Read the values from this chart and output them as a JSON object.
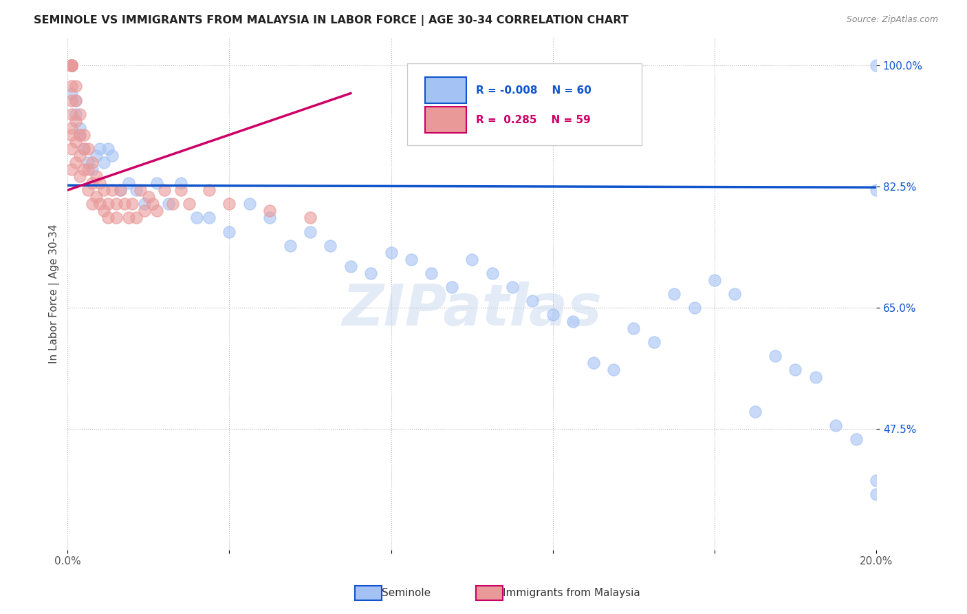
{
  "title": "SEMINOLE VS IMMIGRANTS FROM MALAYSIA IN LABOR FORCE | AGE 30-34 CORRELATION CHART",
  "source": "Source: ZipAtlas.com",
  "ylabel": "In Labor Force | Age 30-34",
  "x_min": 0.0,
  "x_max": 0.2,
  "y_min": 0.3,
  "y_max": 1.04,
  "x_ticks": [
    0.0,
    0.04,
    0.08,
    0.12,
    0.16,
    0.2
  ],
  "x_tick_labels": [
    "0.0%",
    "",
    "",
    "",
    "",
    "20.0%"
  ],
  "y_ticks": [
    0.475,
    0.65,
    0.825,
    1.0
  ],
  "y_tick_labels": [
    "47.5%",
    "65.0%",
    "82.5%",
    "100.0%"
  ],
  "blue_color": "#a4c2f4",
  "pink_color": "#ea9999",
  "blue_line_color": "#1155cc",
  "pink_line_color": "#cc0066",
  "watermark": "ZIPatlas",
  "legend_R_blue": "-0.008",
  "legend_N_blue": "60",
  "legend_R_pink": "0.285",
  "legend_N_pink": "59",
  "legend_label_blue": "Seminole",
  "legend_label_pink": "Immigrants from Malaysia",
  "blue_trend_x": [
    0.0,
    0.2
  ],
  "blue_trend_y": [
    0.827,
    0.824
  ],
  "pink_trend_x": [
    0.0,
    0.07
  ],
  "pink_trend_y": [
    0.82,
    0.96
  ],
  "blue_x": [
    0.001,
    0.001,
    0.001,
    0.002,
    0.002,
    0.003,
    0.003,
    0.004,
    0.005,
    0.006,
    0.007,
    0.008,
    0.009,
    0.01,
    0.011,
    0.013,
    0.015,
    0.017,
    0.019,
    0.022,
    0.025,
    0.028,
    0.032,
    0.035,
    0.04,
    0.045,
    0.05,
    0.055,
    0.06,
    0.065,
    0.07,
    0.075,
    0.08,
    0.085,
    0.09,
    0.095,
    0.1,
    0.105,
    0.11,
    0.115,
    0.12,
    0.125,
    0.13,
    0.135,
    0.14,
    0.145,
    0.15,
    0.155,
    0.16,
    0.165,
    0.17,
    0.175,
    0.18,
    0.185,
    0.19,
    0.195,
    0.2,
    0.2,
    0.2,
    0.2
  ],
  "blue_y": [
    1.0,
    1.0,
    0.96,
    0.95,
    0.93,
    0.91,
    0.9,
    0.88,
    0.86,
    0.85,
    0.87,
    0.88,
    0.86,
    0.88,
    0.87,
    0.82,
    0.83,
    0.82,
    0.8,
    0.83,
    0.8,
    0.83,
    0.78,
    0.78,
    0.76,
    0.8,
    0.78,
    0.74,
    0.76,
    0.74,
    0.71,
    0.7,
    0.73,
    0.72,
    0.7,
    0.68,
    0.72,
    0.7,
    0.68,
    0.66,
    0.64,
    0.63,
    0.57,
    0.56,
    0.62,
    0.6,
    0.67,
    0.65,
    0.69,
    0.67,
    0.5,
    0.58,
    0.56,
    0.55,
    0.48,
    0.46,
    0.4,
    0.38,
    1.0,
    0.82
  ],
  "pink_x": [
    0.001,
    0.001,
    0.001,
    0.001,
    0.001,
    0.001,
    0.001,
    0.001,
    0.001,
    0.001,
    0.001,
    0.001,
    0.002,
    0.002,
    0.002,
    0.002,
    0.002,
    0.003,
    0.003,
    0.003,
    0.003,
    0.004,
    0.004,
    0.004,
    0.005,
    0.005,
    0.005,
    0.006,
    0.006,
    0.006,
    0.007,
    0.007,
    0.008,
    0.008,
    0.009,
    0.009,
    0.01,
    0.01,
    0.011,
    0.012,
    0.012,
    0.013,
    0.014,
    0.015,
    0.016,
    0.017,
    0.018,
    0.019,
    0.02,
    0.021,
    0.022,
    0.024,
    0.026,
    0.028,
    0.03,
    0.035,
    0.04,
    0.05,
    0.06
  ],
  "pink_y": [
    1.0,
    1.0,
    1.0,
    1.0,
    1.0,
    0.97,
    0.95,
    0.93,
    0.91,
    0.9,
    0.88,
    0.85,
    0.97,
    0.95,
    0.92,
    0.89,
    0.86,
    0.93,
    0.9,
    0.87,
    0.84,
    0.9,
    0.88,
    0.85,
    0.88,
    0.85,
    0.82,
    0.86,
    0.83,
    0.8,
    0.84,
    0.81,
    0.83,
    0.8,
    0.82,
    0.79,
    0.8,
    0.78,
    0.82,
    0.8,
    0.78,
    0.82,
    0.8,
    0.78,
    0.8,
    0.78,
    0.82,
    0.79,
    0.81,
    0.8,
    0.79,
    0.82,
    0.8,
    0.82,
    0.8,
    0.82,
    0.8,
    0.79,
    0.78
  ]
}
